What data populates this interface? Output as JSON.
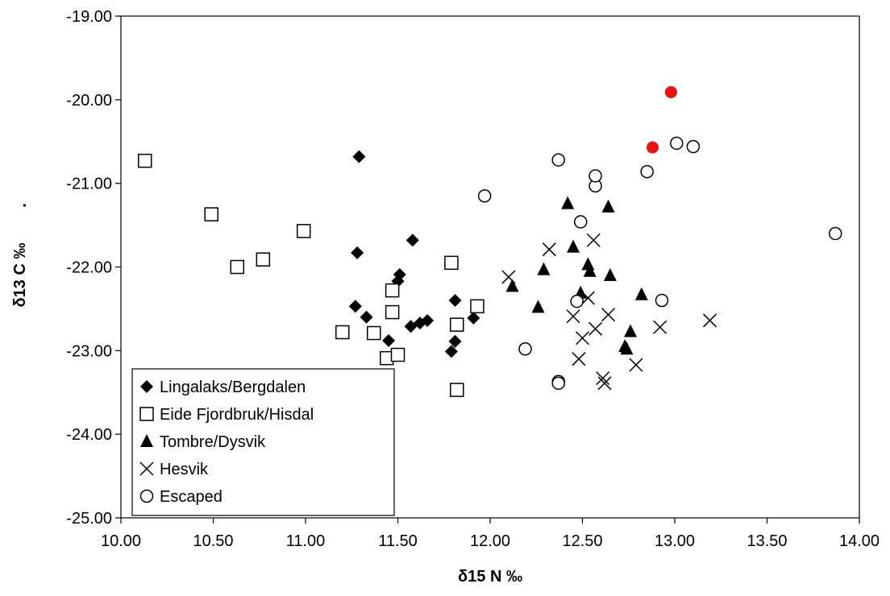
{
  "chart_data": {
    "type": "scatter",
    "title": "",
    "xlabel": "δ15 N ‰",
    "ylabel": "δ13 C ‰",
    "ylabel_prefix_mark": ".",
    "xlim": [
      10.0,
      14.0
    ],
    "ylim": [
      -25.0,
      -19.0
    ],
    "x_ticks": [
      10.0,
      10.5,
      11.0,
      11.5,
      12.0,
      12.5,
      13.0,
      13.5,
      14.0
    ],
    "y_ticks": [
      -19.0,
      -20.0,
      -21.0,
      -22.0,
      -23.0,
      -24.0,
      -25.0
    ],
    "x_tick_labels": [
      "10.00",
      "10.50",
      "11.00",
      "11.50",
      "12.00",
      "12.50",
      "13.00",
      "13.50",
      "14.00"
    ],
    "y_tick_labels": [
      "-19.00",
      "-20.00",
      "-21.00",
      "-22.00",
      "-23.00",
      "-24.00",
      "-25.00"
    ],
    "grid": false,
    "legend_position": "bottom-left",
    "series": [
      {
        "name": "Lingalaks/Bergdalen",
        "marker": "diamond-filled",
        "color": "#000000",
        "points": [
          [
            11.29,
            -20.68
          ],
          [
            11.28,
            -21.83
          ],
          [
            11.27,
            -22.47
          ],
          [
            11.33,
            -22.6
          ],
          [
            11.45,
            -22.88
          ],
          [
            11.5,
            -22.17
          ],
          [
            11.51,
            -22.09
          ],
          [
            11.58,
            -21.68
          ],
          [
            11.57,
            -22.71
          ],
          [
            11.62,
            -22.67
          ],
          [
            11.66,
            -22.64
          ],
          [
            11.79,
            -23.01
          ],
          [
            11.81,
            -22.89
          ],
          [
            11.81,
            -22.4
          ],
          [
            11.91,
            -22.61
          ]
        ]
      },
      {
        "name": "Eide Fjordbruk/Hisdal",
        "marker": "square-open",
        "color": "#000000",
        "points": [
          [
            10.13,
            -20.73
          ],
          [
            10.49,
            -21.37
          ],
          [
            10.63,
            -22.0
          ],
          [
            10.77,
            -21.91
          ],
          [
            10.99,
            -21.57
          ],
          [
            11.2,
            -22.78
          ],
          [
            11.37,
            -22.79
          ],
          [
            11.44,
            -23.09
          ],
          [
            11.47,
            -22.28
          ],
          [
            11.47,
            -22.54
          ],
          [
            11.5,
            -23.05
          ],
          [
            11.79,
            -21.95
          ],
          [
            11.82,
            -22.69
          ],
          [
            11.93,
            -22.47
          ],
          [
            11.82,
            -23.47
          ]
        ]
      },
      {
        "name": "Tombre/Dysvik",
        "marker": "triangle-filled",
        "color": "#000000",
        "points": [
          [
            12.12,
            -22.23
          ],
          [
            12.29,
            -22.03
          ],
          [
            12.26,
            -22.48
          ],
          [
            12.42,
            -21.24
          ],
          [
            12.45,
            -21.76
          ],
          [
            12.49,
            -22.31
          ],
          [
            12.53,
            -21.97
          ],
          [
            12.54,
            -22.05
          ],
          [
            12.64,
            -21.28
          ],
          [
            12.65,
            -22.1
          ],
          [
            12.73,
            -22.95
          ],
          [
            12.74,
            -22.98
          ],
          [
            12.76,
            -22.77
          ],
          [
            12.82,
            -22.33
          ]
        ]
      },
      {
        "name": "Hesvik",
        "marker": "x",
        "color": "#000000",
        "points": [
          [
            12.1,
            -22.12
          ],
          [
            12.32,
            -21.79
          ],
          [
            12.45,
            -22.59
          ],
          [
            12.48,
            -23.1
          ],
          [
            12.5,
            -22.85
          ],
          [
            12.53,
            -22.37
          ],
          [
            12.56,
            -21.68
          ],
          [
            12.57,
            -22.74
          ],
          [
            12.61,
            -23.33
          ],
          [
            12.62,
            -23.39
          ],
          [
            12.64,
            -22.57
          ],
          [
            12.79,
            -23.17
          ],
          [
            12.92,
            -22.72
          ],
          [
            13.19,
            -22.64
          ]
        ]
      },
      {
        "name": "Escaped",
        "marker": "circle-open",
        "color": "#000000",
        "points": [
          [
            11.97,
            -21.15
          ],
          [
            12.19,
            -22.98
          ],
          [
            12.37,
            -20.72
          ],
          [
            12.37,
            -23.37
          ],
          [
            12.37,
            -23.39
          ],
          [
            12.47,
            -22.41
          ],
          [
            12.49,
            -21.46
          ],
          [
            12.57,
            -21.03
          ],
          [
            12.57,
            -20.91
          ],
          [
            12.85,
            -20.86
          ],
          [
            12.93,
            -22.4
          ],
          [
            13.01,
            -20.52
          ],
          [
            13.1,
            -20.56
          ],
          [
            13.87,
            -21.6
          ]
        ]
      },
      {
        "name": "",
        "marker": "circle-filled",
        "color": "#ee1111",
        "in_legend": false,
        "points": [
          [
            12.98,
            -19.91
          ],
          [
            12.88,
            -20.57
          ]
        ]
      }
    ]
  }
}
